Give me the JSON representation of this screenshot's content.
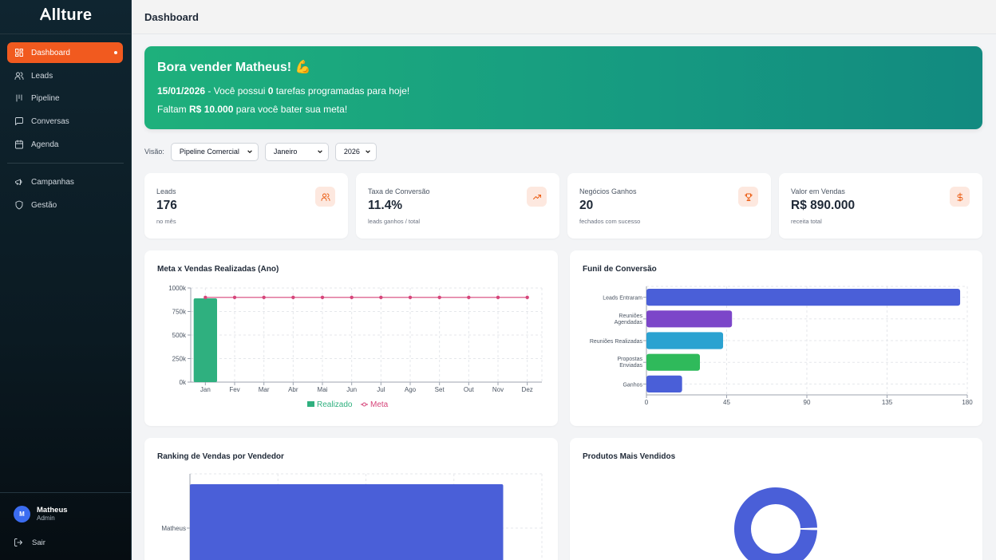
{
  "app": {
    "logo": "llture",
    "logo_icon": "A-mark"
  },
  "sidebar": {
    "items": [
      {
        "label": "Dashboard",
        "icon": "grid-icon",
        "active": true
      },
      {
        "label": "Leads",
        "icon": "users-icon"
      },
      {
        "label": "Pipeline",
        "icon": "kanban-icon"
      },
      {
        "label": "Conversas",
        "icon": "chat-icon"
      },
      {
        "label": "Agenda",
        "icon": "calendar-icon"
      },
      {
        "label": "Campanhas",
        "icon": "megaphone-icon"
      },
      {
        "label": "Gestão",
        "icon": "shield-icon"
      }
    ],
    "user": {
      "initial": "M",
      "name": "Matheus",
      "role": "Admin"
    },
    "logout": "Sair"
  },
  "header": {
    "title": "Dashboard"
  },
  "banner": {
    "title": "Bora vender Matheus! 💪",
    "date": "15/01/2026",
    "line1_pre": " - Você possui ",
    "tasks": "0",
    "line1_post": " tarefas programadas para hoje!",
    "line2_pre": "Faltam ",
    "amount": "R$ 10.000",
    "line2_post": " para você bater sua meta!"
  },
  "filters": {
    "label": "Visão:",
    "view": "Pipeline Comercial",
    "month": "Janeiro",
    "year": "2026"
  },
  "kpis": [
    {
      "label": "Leads",
      "value": "176",
      "sub": "no mês",
      "icon": "users-icon"
    },
    {
      "label": "Taxa de Conversão",
      "value": "11.4%",
      "sub": "leads ganhos / total",
      "icon": "trending-up-icon"
    },
    {
      "label": "Negócios Ganhos",
      "value": "20",
      "sub": "fechados com sucesso",
      "icon": "trophy-icon"
    },
    {
      "label": "Valor em Vendas",
      "value": "R$ 890.000",
      "sub": "receita total",
      "icon": "dollar-icon"
    }
  ],
  "colors": {
    "accent": "#f15a1f",
    "realizado": "#2fb07f",
    "meta": "#d6457a",
    "funnel_blue": "#4a5fd8",
    "funnel_purple": "#7c46c9",
    "funnel_cyan": "#2ba2d1",
    "funnel_green": "#2fba5b"
  },
  "chart_data": [
    {
      "title": "Meta x Vendas Realizadas (Ano)",
      "type": "bar",
      "categories": [
        "Jan",
        "Fev",
        "Mar",
        "Abr",
        "Mai",
        "Jun",
        "Jul",
        "Ago",
        "Set",
        "Out",
        "Nov",
        "Dez"
      ],
      "series": [
        {
          "name": "Realizado",
          "type": "bar",
          "values": [
            890000,
            0,
            0,
            0,
            0,
            0,
            0,
            0,
            0,
            0,
            0,
            0
          ]
        },
        {
          "name": "Meta",
          "type": "line",
          "values": [
            900000,
            900000,
            900000,
            900000,
            900000,
            900000,
            900000,
            900000,
            900000,
            900000,
            900000,
            900000
          ]
        }
      ],
      "ylim": [
        0,
        1000000
      ],
      "yticks": [
        "0k",
        "250k",
        "500k",
        "750k",
        "1000k"
      ],
      "grid": true,
      "legend": "bottom"
    },
    {
      "title": "Funil de Conversão",
      "type": "bar",
      "orientation": "horizontal",
      "categories": [
        "Leads Entraram",
        "Reuniões Agendadas",
        "Reuniões Realizadas",
        "Propostas Enviadas",
        "Ganhos"
      ],
      "values": [
        176,
        48,
        43,
        30,
        20
      ],
      "xlim": [
        0,
        180
      ],
      "xticks": [
        "0",
        "45",
        "90",
        "135",
        "180"
      ],
      "grid": true
    },
    {
      "title": "Ranking de Vendas por Vendedor",
      "type": "bar",
      "orientation": "horizontal",
      "categories": [
        "Matheus"
      ],
      "values": [
        890000
      ],
      "grid": true
    },
    {
      "title": "Produtos Mais Vendidos",
      "type": "pie",
      "style": "donut",
      "values": [
        1
      ]
    }
  ]
}
